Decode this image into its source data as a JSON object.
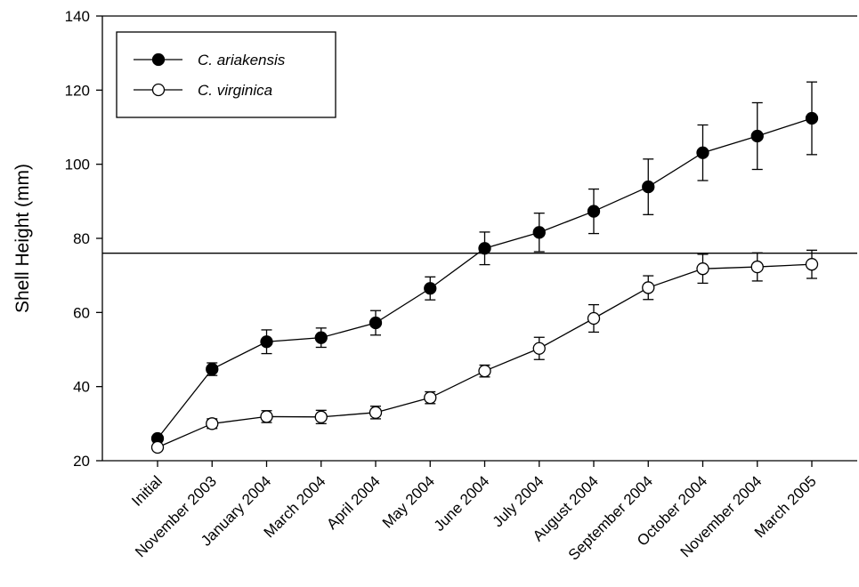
{
  "chart_data": {
    "type": "line",
    "title": "",
    "xlabel": "",
    "ylabel": "Shell Height (mm)",
    "ylim": [
      20,
      140
    ],
    "yticks": [
      20,
      40,
      60,
      80,
      100,
      120,
      140
    ],
    "grid": false,
    "legend_position": "top-left",
    "reference_line_y": 76,
    "categories": [
      "Initial",
      "November 2003",
      "January 2004",
      "March 2004",
      "April 2004",
      "May 2004",
      "June 2004",
      "July 2004",
      "August 2004",
      "September 2004",
      "October 2004",
      "November 2004",
      "March 2005"
    ],
    "series": [
      {
        "name": "C. ariakensis",
        "marker": "filled",
        "values": [
          26,
          44.7,
          52.1,
          53.2,
          57.2,
          66.5,
          77.3,
          81.6,
          87.3,
          93.9,
          103.1,
          107.6,
          112.4
        ],
        "errors": [
          0.8,
          1.7,
          3.2,
          2.6,
          3.3,
          3.1,
          4.4,
          5.2,
          6.0,
          7.5,
          7.5,
          9.0,
          9.8
        ]
      },
      {
        "name": "C. virginica",
        "marker": "open",
        "values": [
          23.6,
          30,
          31.9,
          31.8,
          33,
          37,
          44.2,
          50.3,
          58.4,
          66.7,
          71.8,
          72.3,
          73
        ],
        "errors": [
          0.6,
          1.3,
          1.6,
          1.8,
          1.7,
          1.6,
          1.6,
          3.0,
          3.7,
          3.2,
          3.9,
          3.8,
          3.8
        ]
      }
    ]
  }
}
